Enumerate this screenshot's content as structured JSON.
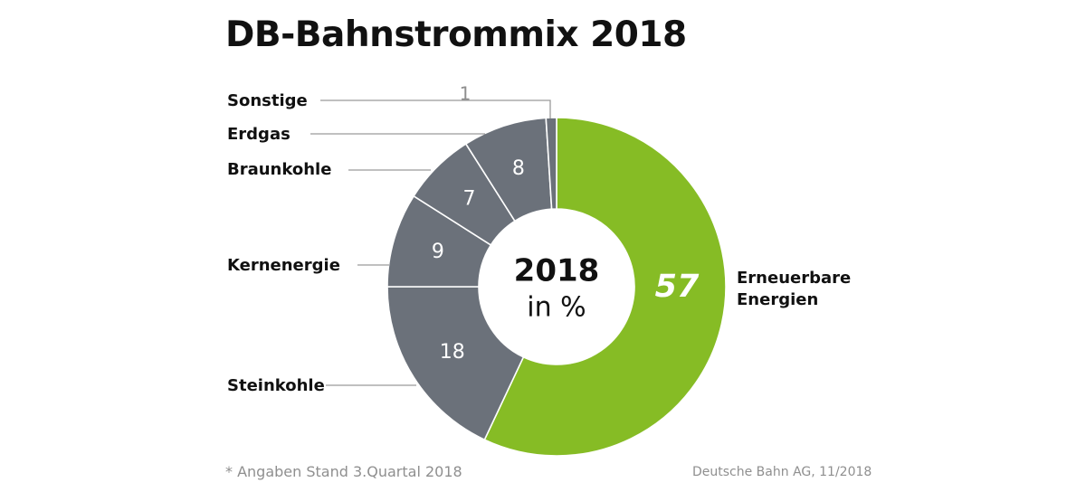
{
  "title": "DB-Bahnstrommix 2018",
  "center": {
    "year": "2018",
    "unit": "in %"
  },
  "footnote": "* Angaben Stand 3.Quartal 2018",
  "source": "Deutsche Bahn AG, 11/2018",
  "chart_data": {
    "type": "pie",
    "donut": true,
    "title": "DB-Bahnstrommix 2018",
    "subtitle": "2018 in %",
    "slices": [
      {
        "label": "Erneuerbare Energien",
        "value": 57,
        "color": "#86bc25"
      },
      {
        "label": "Steinkohle",
        "value": 18,
        "color": "#6b717a"
      },
      {
        "label": "Kernenergie",
        "value": 9,
        "color": "#6b717a"
      },
      {
        "label": "Braunkohle",
        "value": 7,
        "color": "#6b717a"
      },
      {
        "label": "Erdgas",
        "value": 8,
        "color": "#6b717a"
      },
      {
        "label": "Sonstige",
        "value": 1,
        "color": "#6b717a"
      }
    ]
  },
  "colors": {
    "green": "#86bc25",
    "gray": "#6b717a",
    "leader": "#9a9a9a"
  }
}
